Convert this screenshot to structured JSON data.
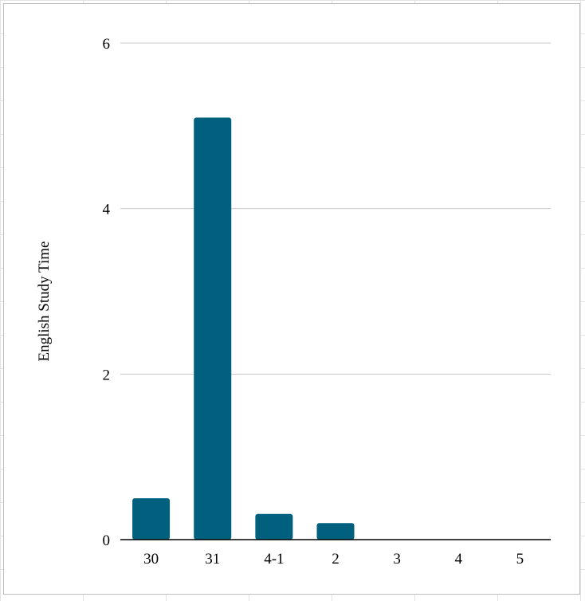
{
  "chart_data": {
    "type": "bar",
    "categories": [
      "30",
      "31",
      "4-1",
      "2",
      "3",
      "4",
      "5"
    ],
    "values": [
      0.5,
      5.1,
      0.31,
      0.2,
      0,
      0,
      0
    ],
    "title": "",
    "xlabel": "",
    "ylabel": "English Study Time",
    "ylim": [
      0,
      6
    ],
    "yticks": [
      "0",
      "2",
      "4",
      "6"
    ],
    "grid": true,
    "legend": "none",
    "bar_color": "#01607e",
    "grid_color": "#c8c8c8",
    "axis_color": "#000000"
  }
}
